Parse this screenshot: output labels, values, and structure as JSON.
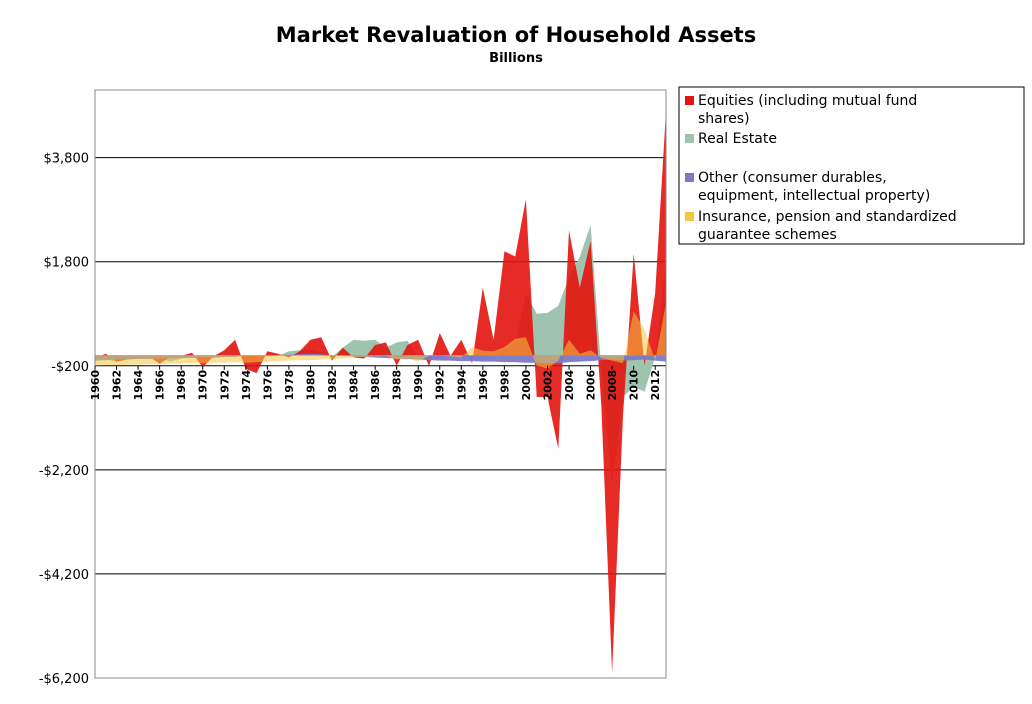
{
  "chart_data": {
    "type": "area",
    "title": "Market Revaluation of Household Assets",
    "subtitle": "Billions",
    "xlabel": "",
    "ylabel": "",
    "ylim": [
      -6200,
      5100
    ],
    "yticks": [
      -6200,
      -4200,
      -2200,
      -200,
      1800,
      3800
    ],
    "ytick_labels": [
      "-$6,200",
      "-$4,200",
      "-$2,200",
      "-$200",
      "$1,800",
      "$3,800"
    ],
    "x": [
      1960,
      1961,
      1962,
      1963,
      1964,
      1965,
      1966,
      1967,
      1968,
      1969,
      1970,
      1971,
      1972,
      1973,
      1974,
      1975,
      1976,
      1977,
      1978,
      1979,
      1980,
      1981,
      1982,
      1983,
      1984,
      1985,
      1986,
      1987,
      1988,
      1989,
      1990,
      1991,
      1992,
      1993,
      1994,
      1995,
      1996,
      1997,
      1998,
      1999,
      2000,
      2001,
      2002,
      2003,
      2004,
      2005,
      2006,
      2007,
      2008,
      2009,
      2010,
      2011,
      2012,
      2013
    ],
    "xtick_labels": [
      "1960",
      "1962",
      "1964",
      "1966",
      "1968",
      "1970",
      "1972",
      "1974",
      "1976",
      "1978",
      "1980",
      "1982",
      "1984",
      "1986",
      "1988",
      "1990",
      "1992",
      "1994",
      "1996",
      "1998",
      "2000",
      "2002",
      "2004",
      "2006",
      "2008",
      "2010",
      "2012"
    ],
    "grid": true,
    "legend_position": "right",
    "series": [
      {
        "name": "Real Estate",
        "color": "#9ec3ae",
        "values": [
          -50,
          -80,
          -120,
          -80,
          -50,
          -60,
          -40,
          -120,
          -60,
          -20,
          -80,
          -50,
          -30,
          -30,
          0,
          -30,
          -20,
          -10,
          80,
          100,
          120,
          60,
          -30,
          150,
          300,
          280,
          300,
          150,
          250,
          280,
          -50,
          -100,
          -60,
          0,
          -40,
          -80,
          -100,
          -60,
          130,
          200,
          1200,
          800,
          820,
          950,
          1500,
          1900,
          2500,
          -300,
          -2500,
          -800,
          -600,
          -700,
          -30,
          1800
        ]
      },
      {
        "name": "Equities (including mutual fund shares)",
        "color": "#e3140e",
        "values": [
          -50,
          30,
          -120,
          -80,
          -60,
          -20,
          -160,
          -30,
          -10,
          50,
          -230,
          -20,
          100,
          300,
          -260,
          -340,
          80,
          30,
          -40,
          80,
          300,
          350,
          -100,
          150,
          -40,
          -60,
          200,
          250,
          -200,
          200,
          300,
          -210,
          430,
          -10,
          300,
          -150,
          1300,
          300,
          2000,
          1900,
          3000,
          -800,
          -800,
          -1800,
          2400,
          1300,
          2200,
          -1000,
          -6100,
          -1200,
          1950,
          -200,
          1200,
          4700
        ]
      },
      {
        "name": "Other (consumer durables, equipment, intellectual property)",
        "color": "#7b78c8",
        "values": [
          -100,
          -90,
          -80,
          -80,
          -70,
          -70,
          -60,
          -60,
          -50,
          -50,
          -40,
          -40,
          -30,
          -30,
          0,
          0,
          -10,
          10,
          10,
          20,
          30,
          20,
          -10,
          -10,
          -20,
          -30,
          -40,
          -50,
          -60,
          -70,
          -80,
          -90,
          -100,
          -100,
          -110,
          -110,
          -120,
          -120,
          -130,
          -130,
          -140,
          -140,
          -150,
          -150,
          -130,
          -120,
          -110,
          -90,
          -80,
          -100,
          -90,
          -80,
          -100,
          -120
        ]
      },
      {
        "name": "Insurance, pension and standardized guarantee schemes",
        "color": "#f2c642",
        "values": [
          -200,
          -190,
          -190,
          -180,
          -180,
          -170,
          -170,
          -160,
          -160,
          -150,
          -150,
          -140,
          -140,
          -130,
          -140,
          -130,
          -120,
          -110,
          -100,
          -90,
          -90,
          -80,
          -70,
          -60,
          -40,
          -30,
          -20,
          -10,
          -80,
          -60,
          -120,
          -10,
          0,
          -20,
          -40,
          160,
          90,
          80,
          160,
          320,
          350,
          -200,
          -250,
          -100,
          300,
          30,
          100,
          -50,
          -100,
          -150,
          850,
          500,
          -100,
          1000
        ]
      }
    ]
  }
}
